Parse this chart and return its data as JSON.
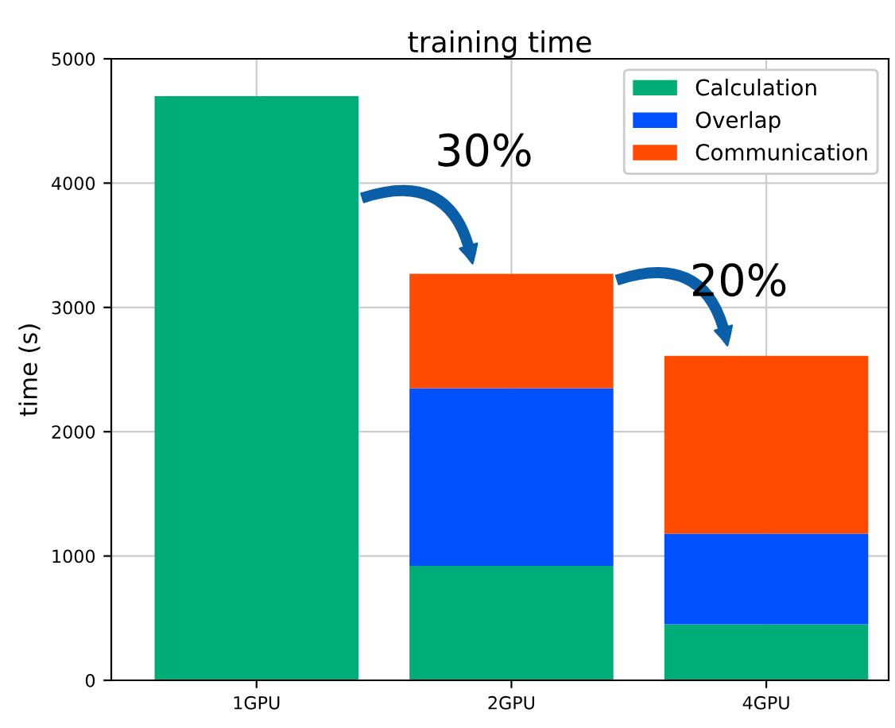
{
  "chart_data": {
    "type": "bar",
    "title": "training time",
    "ylabel": "time (s)",
    "categories": [
      "1GPU",
      "2GPU",
      "4GPU"
    ],
    "stacked": true,
    "series": [
      {
        "name": "Calculation",
        "color": "#00ad78",
        "values": [
          4700,
          920,
          450
        ]
      },
      {
        "name": "Overlap",
        "color": "#0050ff",
        "values": [
          0,
          1430,
          730
        ]
      },
      {
        "name": "Communication",
        "color": "#ff4b00",
        "values": [
          0,
          920,
          1430
        ]
      }
    ],
    "ylim": [
      0,
      5000
    ],
    "yticks": [
      0,
      1000,
      2000,
      3000,
      4000,
      5000
    ],
    "grid": true,
    "legend": "top right",
    "annotations": [
      "30%",
      "20%"
    ]
  }
}
